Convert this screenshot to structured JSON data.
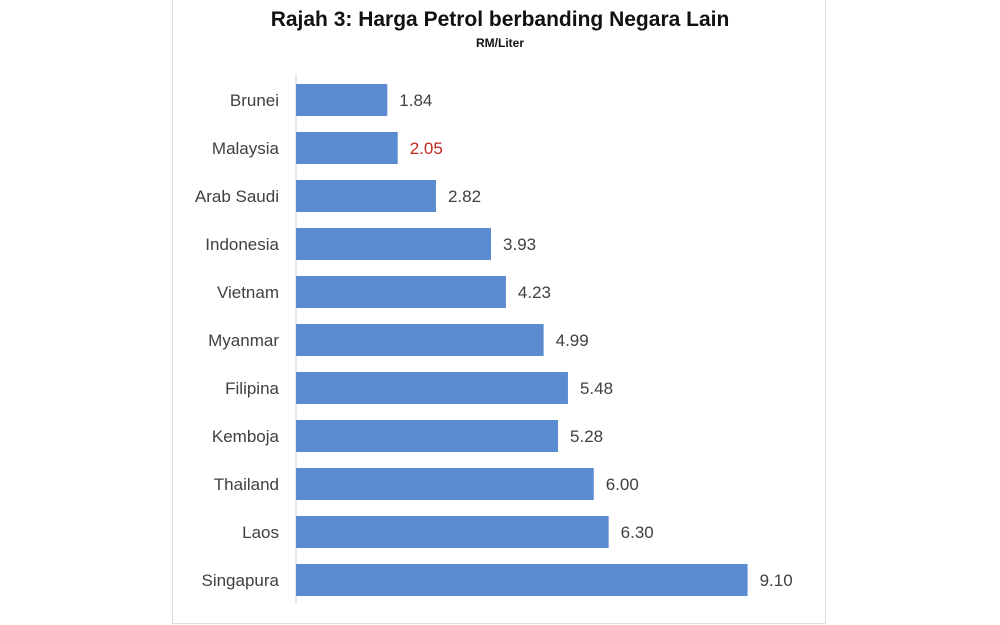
{
  "chart_data": {
    "type": "bar",
    "orientation": "horizontal",
    "title": "Rajah 3: Harga Petrol berbanding Negara Lain",
    "subtitle": "RM/Liter",
    "categories": [
      "Brunei",
      "Malaysia",
      "Arab Saudi",
      "Indonesia",
      "Vietnam",
      "Myanmar",
      "Filipina",
      "Kemboja",
      "Thailand",
      "Laos",
      "Singapura"
    ],
    "values": [
      1.84,
      2.05,
      2.82,
      3.93,
      4.23,
      4.99,
      5.48,
      5.28,
      6.0,
      6.3,
      9.1
    ],
    "value_labels": [
      "1.84",
      "2.05",
      "2.82",
      "3.93",
      "4.23",
      "4.99",
      "5.48",
      "5.28",
      "6.00",
      "6.30",
      "9.10"
    ],
    "bar_color": "#5B8BD0",
    "highlight_category": "Malaysia",
    "highlight_label_color": "#C0281E",
    "label_color": "#404040",
    "axis_color": "#D0D0D0",
    "xlim": [
      0,
      9.35
    ],
    "grid": false,
    "legend": "none"
  }
}
